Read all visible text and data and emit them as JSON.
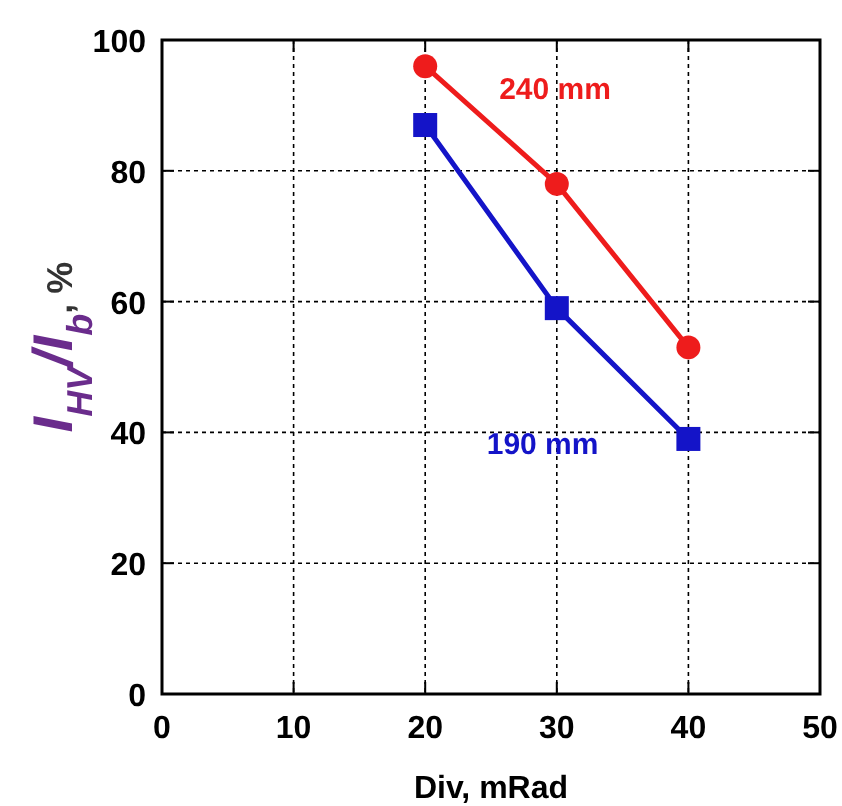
{
  "chart_data": {
    "type": "line",
    "xlabel": "Div, mRad",
    "ylabel": "I$_{HV}$/I$_{b}$, %",
    "x": [
      20,
      30,
      40
    ],
    "series": [
      {
        "name": "240 mm",
        "color": "#ee1c1c",
        "values": [
          96,
          78,
          53
        ],
        "marker": "circle"
      },
      {
        "name": "190 mm",
        "color": "#1414c8",
        "values": [
          87,
          59,
          39
        ],
        "marker": "square"
      }
    ],
    "xlim": [
      0,
      50
    ],
    "xticks": [
      0,
      10,
      20,
      30,
      40,
      50
    ],
    "ylim": [
      0,
      100
    ],
    "yticks": [
      0,
      20,
      40,
      60,
      80,
      100
    ],
    "grid": true,
    "line_style": "solid"
  }
}
